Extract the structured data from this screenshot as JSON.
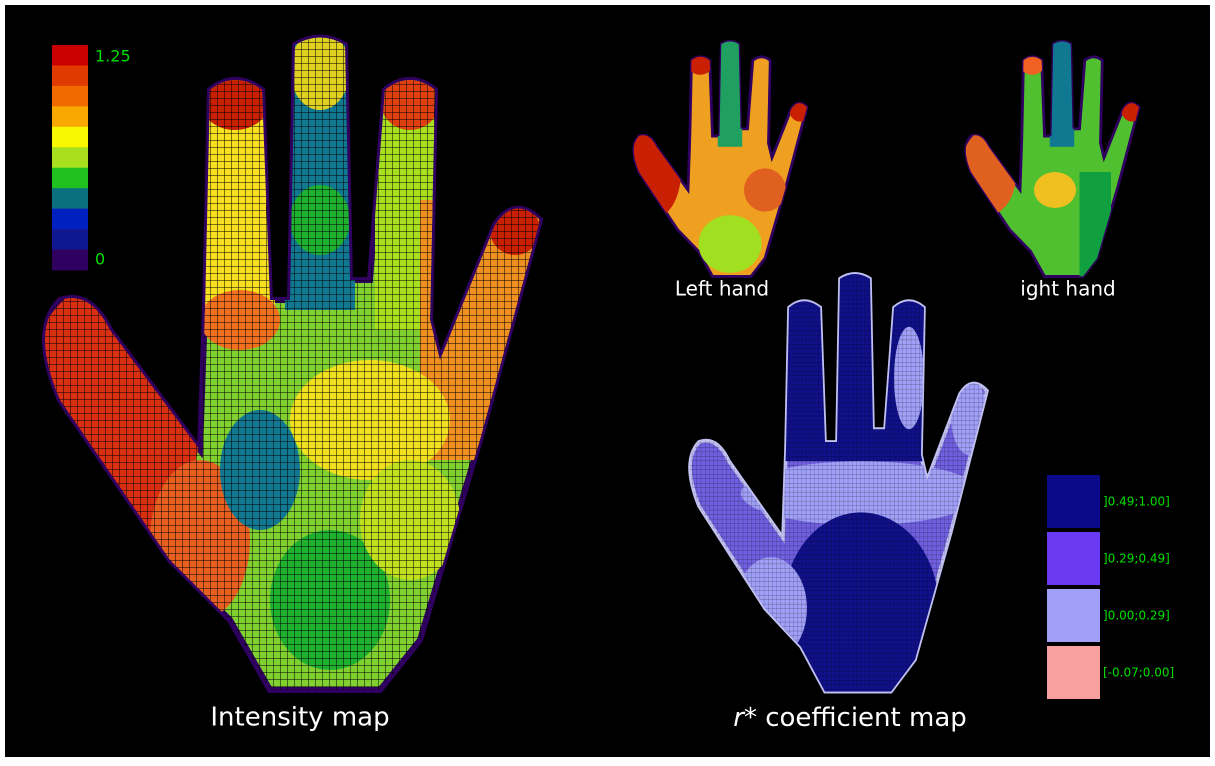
{
  "intensity_map": {
    "title": "Intensity map",
    "scale": {
      "max_label": "1.25",
      "min_label": "0",
      "colors": [
        "#c80000",
        "#e03a00",
        "#f06a00",
        "#f8a800",
        "#f8f800",
        "#a8e020",
        "#20c020",
        "#0a7080",
        "#0020c0",
        "#101890",
        "#300060"
      ]
    }
  },
  "small_hands": {
    "left": "Left hand",
    "right": "ight hand"
  },
  "coefficient_map": {
    "title_symbol": "r",
    "title_rest": "* coefficient map",
    "legend": [
      {
        "label": "]0.49;1.00]",
        "color": "#0a0a8a"
      },
      {
        "label": "]0.29;0.49]",
        "color": "#6a3af0"
      },
      {
        "label": "]0.00;0.29]",
        "color": "#a0a0f8"
      },
      {
        "label": "[-0.07;0.00]",
        "color": "#f8a0a0"
      }
    ]
  }
}
